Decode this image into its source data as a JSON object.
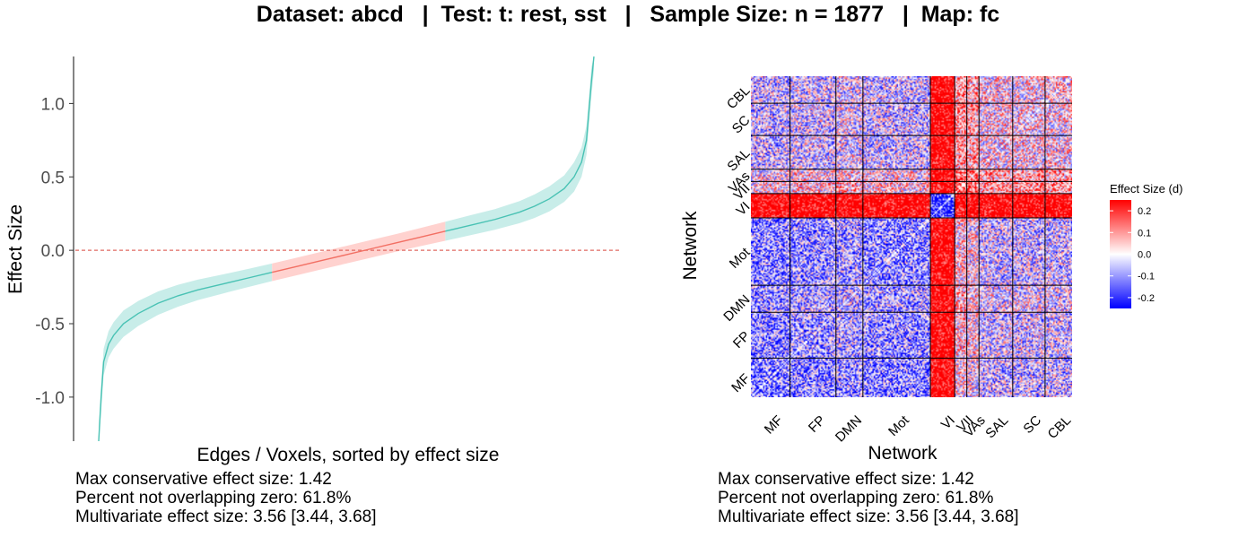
{
  "title": "Dataset: abcd   |  Test: t: rest, sst   |   Sample Size: n = 1877   |  Map: fc",
  "chart_data": [
    {
      "type": "line",
      "xlabel": "Edges / Voxels, sorted by effect size",
      "ylabel": "Effect Size",
      "ylim": [
        -1.3,
        1.32
      ],
      "yticks": [
        -1.0,
        -0.5,
        0.0,
        0.5,
        1.0
      ],
      "ytick_labels": [
        "-1.0",
        "-0.5",
        "0.0",
        "0.5",
        "1.0"
      ],
      "zero_line": {
        "value": 0,
        "style": "dashed",
        "color": "#e06a62"
      },
      "series": [
        {
          "x": [
            0,
            0.005,
            0.01,
            0.02,
            0.03,
            0.05,
            0.08,
            0.12,
            0.16,
            0.2,
            0.25,
            0.3,
            0.35,
            0.4,
            0.45,
            0.5,
            0.55,
            0.6,
            0.65,
            0.7,
            0.75,
            0.8,
            0.85,
            0.88,
            0.91,
            0.94,
            0.96,
            0.975,
            0.985,
            0.99,
            0.995,
            1.0
          ],
          "y": [
            -1.3,
            -1.0,
            -0.76,
            -0.64,
            -0.58,
            -0.5,
            -0.43,
            -0.36,
            -0.31,
            -0.27,
            -0.23,
            -0.19,
            -0.15,
            -0.11,
            -0.07,
            -0.03,
            0.01,
            0.05,
            0.09,
            0.13,
            0.17,
            0.21,
            0.26,
            0.3,
            0.35,
            0.42,
            0.5,
            0.6,
            0.75,
            0.95,
            1.15,
            1.32
          ],
          "ci_halfwidth": [
            0.1,
            0.1,
            0.09,
            0.09,
            0.09,
            0.09,
            0.085,
            0.08,
            0.075,
            0.07,
            0.065,
            0.062,
            0.06,
            0.06,
            0.06,
            0.06,
            0.06,
            0.06,
            0.062,
            0.065,
            0.068,
            0.07,
            0.075,
            0.08,
            0.085,
            0.09,
            0.1,
            0.1,
            0.1,
            0.1,
            0.1,
            0.1
          ]
        }
      ],
      "colors": {
        "significant": "#49c2b4",
        "not_significant": "#f26f63",
        "ci_significant": "#c8ede9",
        "ci_not_significant": "#ffd2cf"
      },
      "non_significant_range": [
        0.35,
        0.7
      ],
      "stats": [
        "Max conservative effect size: 1.42",
        "Percent not overlapping zero: 61.8%",
        "Multivariate effect size: 3.56 [3.44, 3.68]"
      ]
    },
    {
      "type": "heatmap",
      "xlabel": "Network",
      "ylabel": "Network",
      "networks": [
        "MF",
        "FP",
        "DMN",
        "Mot",
        "VI",
        "VII",
        "VAs",
        "SAL",
        "SC",
        "CBL"
      ],
      "network_sizes": [
        29,
        34,
        20,
        50,
        18,
        9,
        9,
        25,
        24,
        20
      ],
      "legend": {
        "title": "Effect Size (d)",
        "ticks": [
          0.2,
          0.1,
          0.0,
          -0.1,
          -0.2
        ],
        "tick_labels": [
          "0.2",
          "0.1",
          "0.0",
          "-0.1",
          "-0.2"
        ]
      },
      "colors": {
        "high": "#ff0000",
        "mid": "#ffffff",
        "low": "#0000ff"
      },
      "stats": [
        "Max conservative effect size: 1.42",
        "Percent not overlapping zero: 61.8%",
        "Multivariate effect size: 3.56 [3.44, 3.68]"
      ]
    }
  ]
}
